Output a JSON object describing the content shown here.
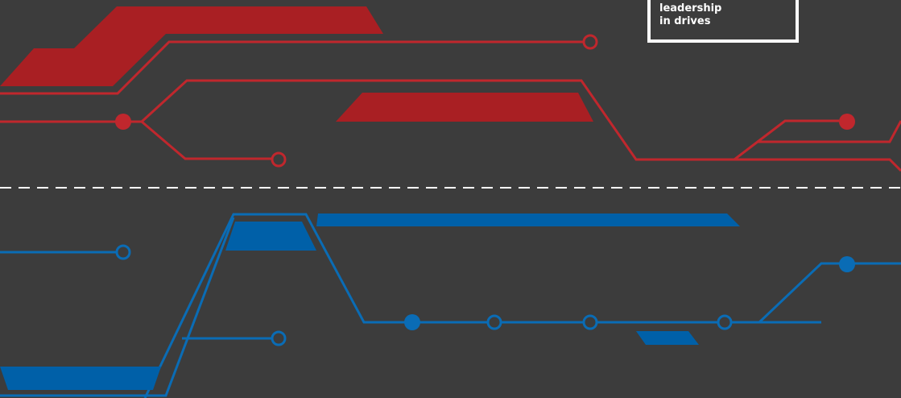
{
  "badge": {
    "lines": [
      "leadership",
      "in drives"
    ]
  }
}
